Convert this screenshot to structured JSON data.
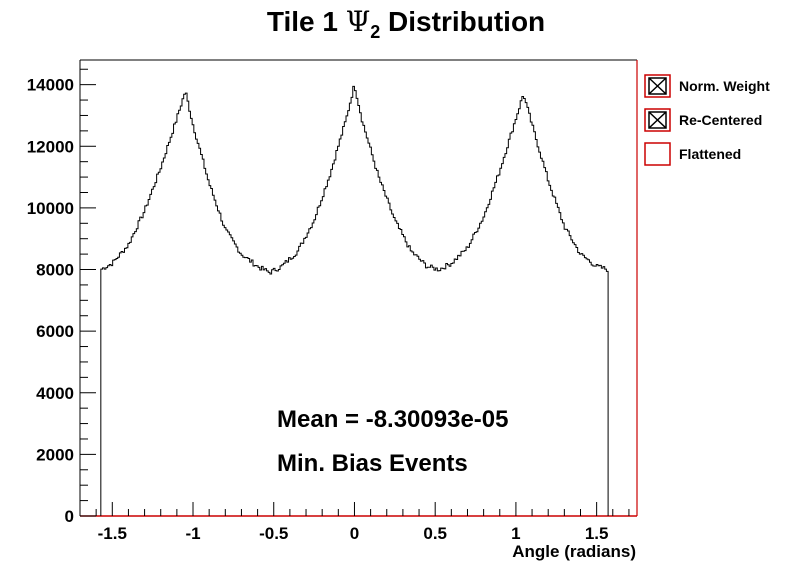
{
  "chart_data": {
    "type": "histogram",
    "title_main": "Tile 1 ",
    "title_symbol": "Ψ",
    "title_subscript": "2",
    "title_rest": " Distribution",
    "xlabel": "Angle (radians)",
    "ylabel": "",
    "xlim": [
      -1.7,
      1.75
    ],
    "ylim": [
      0,
      14800
    ],
    "x_ticks": [
      -1.5,
      -1,
      -0.5,
      0,
      0.5,
      1,
      1.5
    ],
    "x_tick_labels": [
      "-1.5",
      "-1",
      "-0.5",
      "0",
      "0.5",
      "1",
      "1.5"
    ],
    "y_ticks": [
      0,
      2000,
      4000,
      6000,
      8000,
      10000,
      12000,
      14000
    ],
    "y_tick_labels": [
      "0",
      "2000",
      "4000",
      "6000",
      "8000",
      "10000",
      "12000",
      "14000"
    ],
    "grid": false,
    "legend_placement": "right",
    "series": [
      {
        "name": "Norm. Weight",
        "marker": "box-cross",
        "color": "#000000",
        "x": [
          -1.571,
          -1.5,
          -1.4,
          -1.3,
          -1.2,
          -1.1,
          -1.047,
          -1.0,
          -0.9,
          -0.8,
          -0.7,
          -0.6,
          -0.524,
          -0.45,
          -0.35,
          -0.25,
          -0.15,
          -0.05,
          0.0,
          0.05,
          0.15,
          0.25,
          0.35,
          0.45,
          0.524,
          0.6,
          0.7,
          0.8,
          0.9,
          1.0,
          1.047,
          1.1,
          1.2,
          1.3,
          1.4,
          1.5,
          1.571
        ],
        "y": [
          8000,
          8200,
          8800,
          9900,
          11300,
          12900,
          13800,
          12700,
          10800,
          9300,
          8500,
          8100,
          7900,
          8100,
          8600,
          9600,
          11100,
          12900,
          14000,
          12800,
          11000,
          9600,
          8600,
          8100,
          8000,
          8200,
          8700,
          9700,
          11200,
          12900,
          13700,
          12700,
          10900,
          9400,
          8500,
          8100,
          8000
        ]
      },
      {
        "name": "Re-Centered",
        "marker": "box-cross",
        "color": "#000000"
      },
      {
        "name": "Flattened",
        "marker": "box",
        "color": "#cc0000"
      }
    ],
    "annotations": [
      "Mean = -8.30093e-05",
      "Min. Bias Events"
    ]
  }
}
